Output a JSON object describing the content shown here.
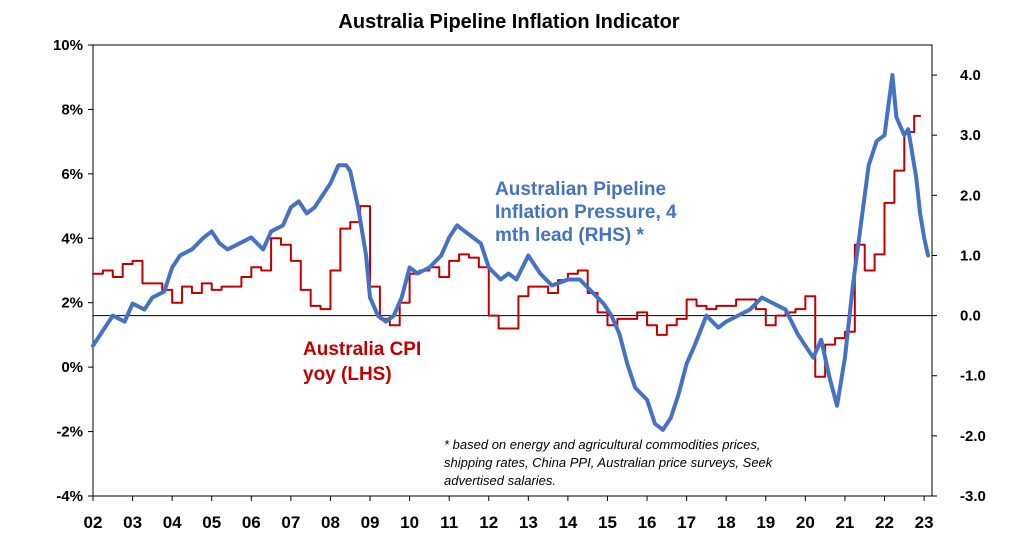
{
  "chart_data": {
    "type": "line",
    "title": "Australia Pipeline Inflation Indicator",
    "x_tick_labels": [
      "02",
      "03",
      "04",
      "05",
      "06",
      "07",
      "08",
      "09",
      "10",
      "11",
      "12",
      "13",
      "14",
      "15",
      "16",
      "17",
      "18",
      "19",
      "20",
      "21",
      "22",
      "23"
    ],
    "x_range": [
      2002,
      2023.2
    ],
    "left_axis": {
      "ticks": [
        "10%",
        "8%",
        "6%",
        "4%",
        "2%",
        "0%",
        "-2%",
        "-4%"
      ],
      "ylim": [
        -4,
        10
      ]
    },
    "right_axis": {
      "ticks": [
        "4.0",
        "3.0",
        "2.0",
        "1.0",
        "0.0",
        "-1.0",
        "-2.0",
        "-3.0"
      ],
      "ylim": [
        -3,
        4.5
      ]
    },
    "series": [
      {
        "name": "Australia CPI yoy (LHS)",
        "label_lines": [
          "Australia CPI",
          "yoy (LHS)"
        ],
        "axis": "left",
        "color": "#C00000",
        "step": true,
        "x": [
          2002.0,
          2002.25,
          2002.5,
          2002.75,
          2003.0,
          2003.25,
          2003.5,
          2003.75,
          2004.0,
          2004.25,
          2004.5,
          2004.75,
          2005.0,
          2005.25,
          2005.5,
          2005.75,
          2006.0,
          2006.25,
          2006.5,
          2006.75,
          2007.0,
          2007.25,
          2007.5,
          2007.75,
          2008.0,
          2008.25,
          2008.5,
          2008.75,
          2009.0,
          2009.25,
          2009.5,
          2009.75,
          2010.0,
          2010.25,
          2010.5,
          2010.75,
          2011.0,
          2011.25,
          2011.5,
          2011.75,
          2012.0,
          2012.25,
          2012.5,
          2012.75,
          2013.0,
          2013.25,
          2013.5,
          2013.75,
          2014.0,
          2014.25,
          2014.5,
          2014.75,
          2015.0,
          2015.25,
          2015.5,
          2015.75,
          2016.0,
          2016.25,
          2016.5,
          2016.75,
          2017.0,
          2017.25,
          2017.5,
          2017.75,
          2018.0,
          2018.25,
          2018.5,
          2018.75,
          2019.0,
          2019.25,
          2019.5,
          2019.75,
          2020.0,
          2020.25,
          2020.5,
          2020.75,
          2021.0,
          2021.25,
          2021.5,
          2021.75,
          2022.0,
          2022.25,
          2022.5,
          2022.75
        ],
        "values": [
          2.9,
          3.0,
          2.8,
          3.2,
          3.3,
          2.6,
          2.6,
          2.4,
          2.0,
          2.5,
          2.3,
          2.6,
          2.4,
          2.5,
          2.5,
          2.8,
          3.1,
          3.0,
          4.0,
          3.8,
          3.3,
          2.4,
          1.9,
          1.8,
          3.0,
          4.3,
          4.5,
          5.0,
          2.5,
          1.5,
          1.3,
          2.0,
          2.9,
          3.0,
          3.1,
          2.8,
          3.3,
          3.5,
          3.4,
          3.1,
          1.6,
          1.2,
          1.2,
          2.2,
          2.5,
          2.5,
          2.3,
          2.7,
          2.9,
          3.0,
          2.3,
          1.7,
          1.3,
          1.5,
          1.5,
          1.7,
          1.3,
          1.0,
          1.3,
          1.5,
          2.1,
          1.9,
          1.8,
          1.9,
          1.9,
          2.1,
          2.1,
          1.8,
          1.3,
          1.6,
          1.7,
          1.8,
          2.2,
          -0.3,
          0.7,
          0.9,
          1.1,
          3.8,
          3.0,
          3.5,
          5.1,
          6.1,
          7.3,
          7.8
        ]
      },
      {
        "name": "Australian Pipeline Inflation Pressure, 4 mth lead (RHS) *",
        "label_lines": [
          "Australian Pipeline",
          "Inflation Pressure, 4",
          "mth lead (RHS) *"
        ],
        "axis": "right",
        "color": "#4472C4",
        "step": false,
        "x": [
          2002.0,
          2002.3,
          2002.5,
          2002.8,
          2003.0,
          2003.3,
          2003.5,
          2003.8,
          2004.0,
          2004.2,
          2004.5,
          2004.8,
          2005.0,
          2005.2,
          2005.4,
          2005.7,
          2006.0,
          2006.3,
          2006.5,
          2006.8,
          2007.0,
          2007.2,
          2007.4,
          2007.6,
          2007.8,
          2008.0,
          2008.2,
          2008.4,
          2008.5,
          2008.7,
          2008.9,
          2009.0,
          2009.2,
          2009.4,
          2009.6,
          2009.8,
          2010.0,
          2010.2,
          2010.5,
          2010.8,
          2011.0,
          2011.2,
          2011.4,
          2011.6,
          2011.8,
          2012.0,
          2012.3,
          2012.5,
          2012.7,
          2013.0,
          2013.3,
          2013.6,
          2014.0,
          2014.3,
          2014.6,
          2014.9,
          2015.1,
          2015.3,
          2015.5,
          2015.7,
          2016.0,
          2016.2,
          2016.4,
          2016.6,
          2016.8,
          2017.0,
          2017.2,
          2017.5,
          2017.8,
          2018.0,
          2018.3,
          2018.6,
          2018.9,
          2019.2,
          2019.5,
          2019.8,
          2020.0,
          2020.2,
          2020.4,
          2020.6,
          2020.8,
          2021.0,
          2021.2,
          2021.4,
          2021.6,
          2021.8,
          2022.0,
          2022.1,
          2022.2,
          2022.3,
          2022.5,
          2022.6,
          2022.8,
          2022.9,
          2023.0,
          2023.1
        ],
        "values": [
          -0.5,
          -0.2,
          0.0,
          -0.1,
          0.2,
          0.1,
          0.3,
          0.4,
          0.8,
          1.0,
          1.1,
          1.3,
          1.4,
          1.2,
          1.1,
          1.2,
          1.3,
          1.1,
          1.4,
          1.5,
          1.8,
          1.9,
          1.7,
          1.8,
          2.0,
          2.2,
          2.5,
          2.5,
          2.4,
          1.8,
          1.0,
          0.3,
          0.0,
          -0.1,
          0.0,
          0.3,
          0.8,
          0.7,
          0.8,
          1.0,
          1.3,
          1.5,
          1.4,
          1.3,
          1.2,
          0.8,
          0.6,
          0.7,
          0.6,
          1.0,
          0.7,
          0.5,
          0.6,
          0.6,
          0.4,
          0.2,
          0.0,
          -0.3,
          -0.8,
          -1.2,
          -1.4,
          -1.8,
          -1.9,
          -1.7,
          -1.3,
          -0.8,
          -0.5,
          0.0,
          -0.2,
          -0.1,
          0.0,
          0.1,
          0.3,
          0.2,
          0.1,
          -0.3,
          -0.5,
          -0.7,
          -0.4,
          -1.0,
          -1.5,
          -0.7,
          0.5,
          1.5,
          2.5,
          2.9,
          3.0,
          3.5,
          4.0,
          3.3,
          3.0,
          3.1,
          2.3,
          1.7,
          1.3,
          1.0
        ]
      }
    ],
    "footnote_lines": [
      "* based on energy and agricultural commodities prices,",
      "shipping rates, China PPI, Australian price surveys, Seek",
      "advertised salaries."
    ]
  }
}
